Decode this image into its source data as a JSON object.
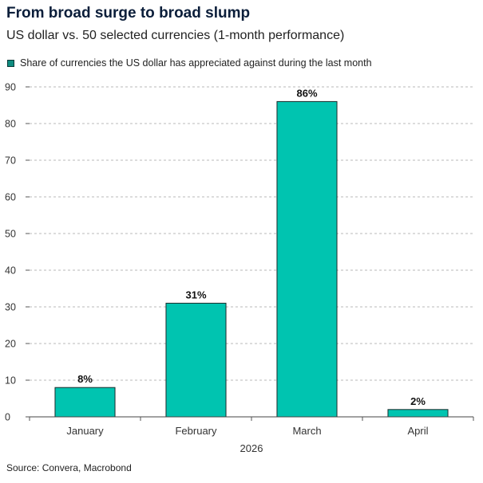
{
  "title": "From broad surge to broad slump",
  "subtitle": "US dollar vs. 50 selected currencies (1-month performance)",
  "source": "Source: Convera, Macrobond",
  "colors": {
    "bar": "#00c4b0",
    "bar_stroke": "#1a2a2a",
    "grid": "#b8b8b8"
  },
  "chart_data": {
    "type": "bar",
    "categories": [
      "January",
      "February",
      "March",
      "April"
    ],
    "series": [
      {
        "name": "Share of currencies the US dollar has appreciated against during the last month",
        "values": [
          8,
          31,
          86,
          2
        ],
        "labels": [
          "8%",
          "31%",
          "86%",
          "2%"
        ]
      }
    ],
    "xlabel": "2026",
    "ylabel": "",
    "ylim": [
      0,
      90
    ],
    "yticks": [
      0,
      10,
      20,
      30,
      40,
      50,
      60,
      70,
      80,
      90
    ],
    "grid": true,
    "legend": "top-left"
  }
}
